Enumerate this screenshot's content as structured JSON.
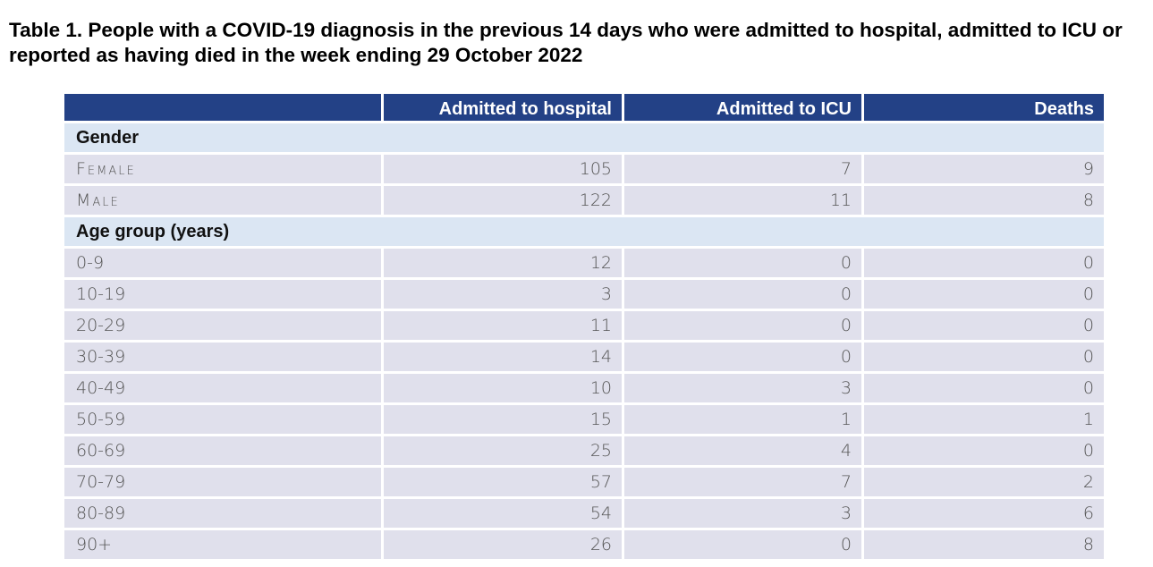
{
  "title": "Table 1. People with a COVID-19 diagnosis in the previous 14 days who were admitted to hospital, admitted to ICU or reported as having died in the week ending 29 October 2022",
  "table": {
    "header": [
      "",
      "Admitted to hospital",
      "Admitted to ICU",
      "Deaths"
    ],
    "sections": [
      {
        "label": "Gender",
        "rows": [
          {
            "label": "Female",
            "hospital": "105",
            "icu": "7",
            "deaths": "9"
          },
          {
            "label": "Male",
            "hospital": "122",
            "icu": "11",
            "deaths": "8"
          }
        ]
      },
      {
        "label": "Age group (years)",
        "rows": [
          {
            "label": "0-9",
            "hospital": "12",
            "icu": "0",
            "deaths": "0"
          },
          {
            "label": "10-19",
            "hospital": "3",
            "icu": "0",
            "deaths": "0"
          },
          {
            "label": "20-29",
            "hospital": "11",
            "icu": "0",
            "deaths": "0"
          },
          {
            "label": "30-39",
            "hospital": "14",
            "icu": "0",
            "deaths": "0"
          },
          {
            "label": "40-49",
            "hospital": "10",
            "icu": "3",
            "deaths": "0"
          },
          {
            "label": "50-59",
            "hospital": "15",
            "icu": "1",
            "deaths": "1"
          },
          {
            "label": "60-69",
            "hospital": "25",
            "icu": "4",
            "deaths": "0"
          },
          {
            "label": "70-79",
            "hospital": "57",
            "icu": "7",
            "deaths": "2"
          },
          {
            "label": "80-89",
            "hospital": "54",
            "icu": "3",
            "deaths": "6"
          },
          {
            "label": "90+",
            "hospital": "26",
            "icu": "0",
            "deaths": "8"
          }
        ]
      }
    ]
  },
  "colors": {
    "header_bg": "#234186",
    "section_bg": "#dbe6f3",
    "row_bg": "#e0e0ec"
  }
}
